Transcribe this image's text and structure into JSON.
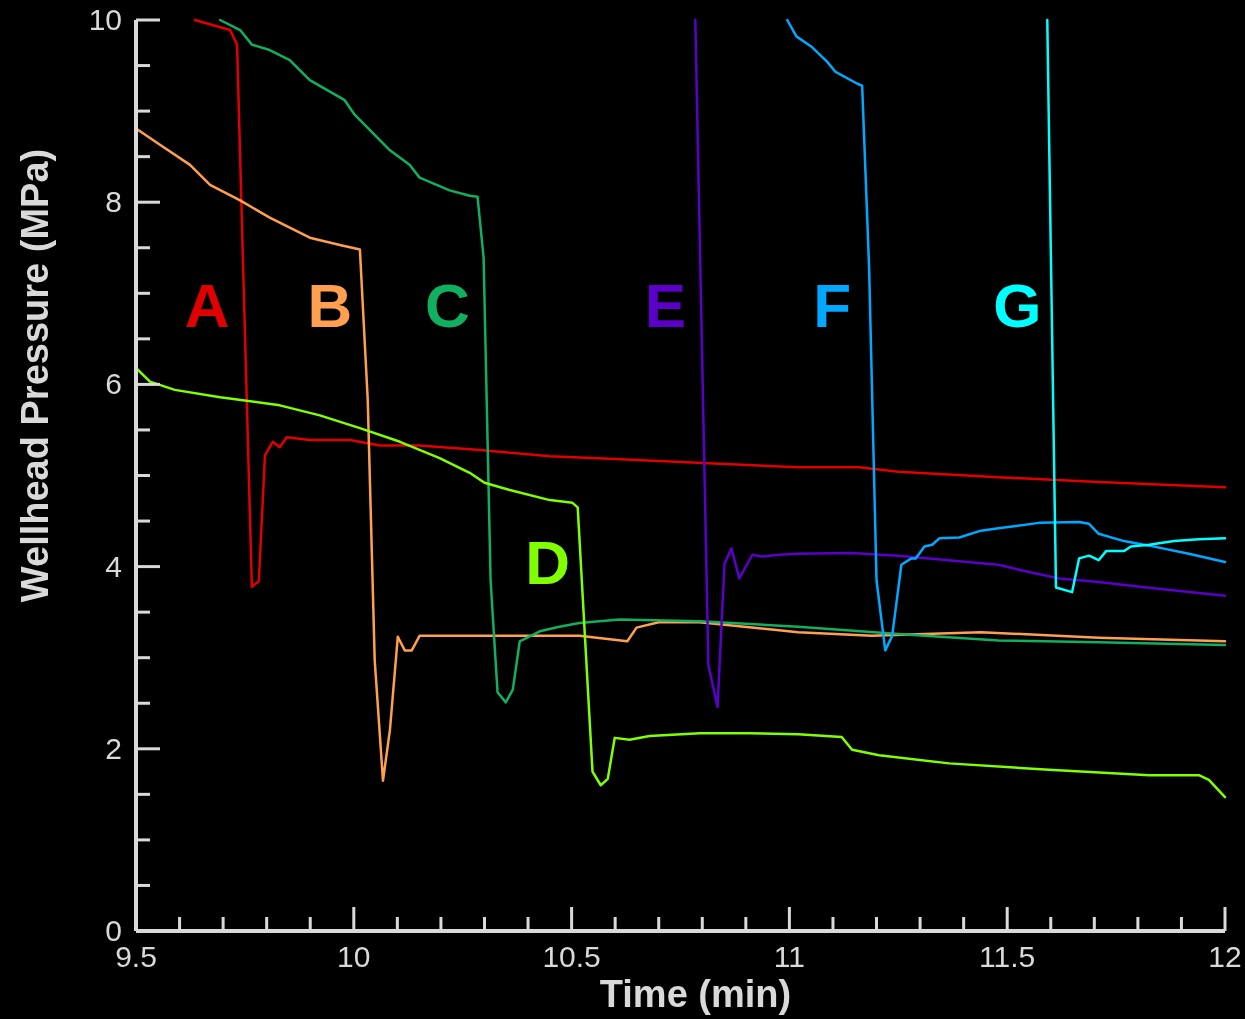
{
  "chart_data": {
    "type": "line",
    "xlabel": "Time (min)",
    "ylabel": "Wellhead Pressure (MPa)",
    "xlim": [
      9.5,
      12
    ],
    "ylim": [
      0,
      10
    ],
    "xticks": [
      9.5,
      {
        "value": 9.6,
        "label": null
      },
      {
        "value": 9.7,
        "label": null
      },
      {
        "value": 9.8,
        "label": null
      },
      {
        "value": 9.9,
        "label": null
      },
      10,
      {
        "value": 10.1,
        "label": null
      },
      {
        "value": 10.2,
        "label": null
      },
      {
        "value": 10.3,
        "label": null
      },
      {
        "value": 10.4,
        "label": null
      },
      10.5,
      {
        "value": 10.6,
        "label": null
      },
      {
        "value": 10.7,
        "label": null
      },
      {
        "value": 10.8,
        "label": null
      },
      {
        "value": 10.9,
        "label": null
      },
      11,
      {
        "value": 11.1,
        "label": null
      },
      {
        "value": 11.2,
        "label": null
      },
      {
        "value": 11.3,
        "label": null
      },
      {
        "value": 11.4,
        "label": null
      },
      11.5,
      {
        "value": 11.6,
        "label": null
      },
      {
        "value": 11.7,
        "label": null
      },
      {
        "value": 11.8,
        "label": null
      },
      {
        "value": 11.9,
        "label": null
      },
      12
    ],
    "yticks": [
      0,
      {
        "value": 0.5,
        "label": null
      },
      {
        "value": 1,
        "label": null
      },
      {
        "value": 1.5,
        "label": null
      },
      2,
      {
        "value": 2.5,
        "label": null
      },
      {
        "value": 3,
        "label": null
      },
      {
        "value": 3.5,
        "label": null
      },
      4,
      {
        "value": 4.5,
        "label": null
      },
      {
        "value": 5,
        "label": null
      },
      {
        "value": 5.5,
        "label": null
      },
      6,
      {
        "value": 6.5,
        "label": null
      },
      {
        "value": 7,
        "label": null
      },
      {
        "value": 7.5,
        "label": null
      },
      8,
      {
        "value": 8.5,
        "label": null
      },
      {
        "value": 9,
        "label": null
      },
      {
        "value": 9.5,
        "label": null
      },
      10
    ],
    "grid": false,
    "marker": "none",
    "line_style": "solid",
    "series": [
      {
        "name": "A",
        "color": "#e00000",
        "x": [
          9.635,
          9.716,
          9.732,
          9.766,
          9.782,
          9.796,
          9.814,
          9.83,
          9.846,
          9.899,
          9.991,
          10.06,
          10.15,
          10.29,
          10.45,
          10.56,
          10.79,
          11.02,
          11.16,
          11.25,
          11.48,
          11.71,
          12
        ],
        "values": [
          10,
          9.89,
          9.73,
          3.78,
          3.84,
          5.22,
          5.37,
          5.31,
          5.42,
          5.39,
          5.39,
          5.33,
          5.33,
          5.28,
          5.21,
          5.19,
          5.14,
          5.09,
          5.09,
          5.04,
          4.98,
          4.93,
          4.87
        ]
      },
      {
        "name": "B",
        "color": "#ffa050",
        "x": [
          9.5,
          9.555,
          9.624,
          9.67,
          9.739,
          9.807,
          9.899,
          9.968,
          10.014,
          10.032,
          10.048,
          10.067,
          10.083,
          10.101,
          10.117,
          10.133,
          10.151,
          10.22,
          10.335,
          10.518,
          10.628,
          10.649,
          10.7,
          10.794,
          11.02,
          11.19,
          11.31,
          11.44,
          11.71,
          12
        ],
        "values": [
          8.81,
          8.63,
          8.41,
          8.19,
          8.02,
          7.83,
          7.61,
          7.53,
          7.48,
          5.83,
          2.97,
          1.65,
          2.21,
          3.23,
          3.08,
          3.08,
          3.24,
          3.24,
          3.24,
          3.24,
          3.18,
          3.33,
          3.39,
          3.39,
          3.28,
          3.24,
          3.26,
          3.28,
          3.22,
          3.18
        ]
      },
      {
        "name": "C",
        "color": "#10b060",
        "x": [
          9.693,
          9.739,
          9.766,
          9.807,
          9.853,
          9.899,
          9.979,
          10.002,
          10.083,
          10.128,
          10.151,
          10.22,
          10.266,
          10.284,
          10.298,
          10.314,
          10.33,
          10.349,
          10.365,
          10.381,
          10.427,
          10.472,
          10.518,
          10.61,
          10.794,
          11.02,
          11.25,
          11.48,
          11.71,
          12
        ],
        "values": [
          10,
          9.89,
          9.73,
          9.67,
          9.56,
          9.34,
          9.12,
          8.96,
          8.57,
          8.41,
          8.27,
          8.13,
          8.07,
          8.06,
          7.39,
          3.85,
          2.62,
          2.51,
          2.65,
          3.18,
          3.29,
          3.34,
          3.38,
          3.42,
          3.4,
          3.34,
          3.26,
          3.19,
          3.17,
          3.14
        ]
      },
      {
        "name": "D",
        "color": "#80ff00",
        "x": [
          9.5,
          9.532,
          9.589,
          9.693,
          9.83,
          9.922,
          10.014,
          10.106,
          10.197,
          10.266,
          10.3,
          10.358,
          10.45,
          10.502,
          10.514,
          10.548,
          10.567,
          10.583,
          10.599,
          10.633,
          10.679,
          10.794,
          10.908,
          11.02,
          11.12,
          11.144,
          11.206,
          11.367,
          11.596,
          11.826,
          11.94,
          11.963,
          12
        ],
        "values": [
          6.18,
          6.03,
          5.94,
          5.86,
          5.77,
          5.66,
          5.52,
          5.37,
          5.19,
          5.03,
          4.92,
          4.84,
          4.73,
          4.7,
          4.65,
          1.75,
          1.6,
          1.67,
          2.12,
          2.1,
          2.14,
          2.17,
          2.17,
          2.16,
          2.13,
          1.99,
          1.93,
          1.84,
          1.77,
          1.71,
          1.71,
          1.66,
          1.47
        ]
      },
      {
        "name": "E",
        "color": "#5a00c8",
        "x": [
          10.784,
          10.814,
          10.835,
          10.851,
          10.867,
          10.885,
          10.915,
          10.936,
          10.977,
          11.02,
          11.14,
          11.25,
          11.48,
          11.55,
          11.62,
          11.71,
          11.82,
          12
        ],
        "values": [
          10,
          2.92,
          2.46,
          4.03,
          4.2,
          3.87,
          4.13,
          4.11,
          4.13,
          4.14,
          4.15,
          4.12,
          4.02,
          3.94,
          3.87,
          3.83,
          3.77,
          3.68
        ]
      },
      {
        "name": "F",
        "color": "#00a8ff",
        "x": [
          10.995,
          11.016,
          11.05,
          11.087,
          11.106,
          11.156,
          11.167,
          11.183,
          11.2,
          11.22,
          11.236,
          11.257,
          11.28,
          11.29,
          11.31,
          11.328,
          11.344,
          11.39,
          11.436,
          11.48,
          11.573,
          11.665,
          11.688,
          11.71,
          11.768,
          11.826,
          11.917,
          12
        ],
        "values": [
          10,
          9.82,
          9.71,
          9.54,
          9.43,
          9.3,
          9.28,
          7.28,
          3.85,
          3.08,
          3.24,
          4.02,
          4.09,
          4.09,
          4.22,
          4.24,
          4.31,
          4.32,
          4.39,
          4.42,
          4.48,
          4.49,
          4.47,
          4.36,
          4.28,
          4.23,
          4.14,
          4.05
        ]
      },
      {
        "name": "G",
        "color": "#00ffff",
        "x": [
          11.592,
          11.612,
          11.649,
          11.665,
          11.688,
          11.71,
          11.727,
          11.768,
          11.784,
          11.826,
          11.883,
          11.94,
          12
        ],
        "values": [
          10,
          3.77,
          3.72,
          4.09,
          4.12,
          4.07,
          4.17,
          4.17,
          4.22,
          4.24,
          4.28,
          4.3,
          4.31
        ]
      }
    ]
  }
}
